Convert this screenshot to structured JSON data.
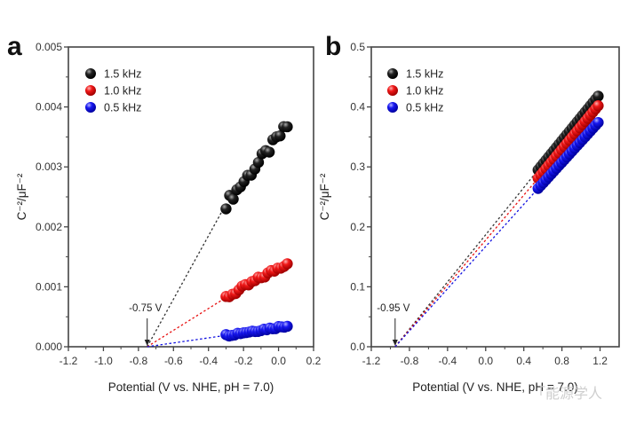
{
  "chart_data": [
    {
      "type": "scatter",
      "panel": "a",
      "title": "",
      "xlabel": "Potential (V vs. NHE, pH = 7.0)",
      "ylabel": "C⁻²/μF⁻²",
      "xlim": [
        -1.2,
        0.2
      ],
      "ylim": [
        0.0,
        0.005
      ],
      "xticks": [
        "-1.2",
        "-1.0",
        "-0.8",
        "-0.6",
        "-0.4",
        "-0.2",
        "0.0",
        "0.2"
      ],
      "xtick_values": [
        -1.2,
        -1.0,
        -0.8,
        -0.6,
        -0.4,
        -0.2,
        0.0,
        0.2
      ],
      "yticks": [
        "0.000",
        "0.001",
        "0.002",
        "0.003",
        "0.004",
        "0.005"
      ],
      "ytick_values": [
        0.0,
        0.001,
        0.002,
        0.003,
        0.004,
        0.005
      ],
      "legend_position": "top-left",
      "annotation": {
        "text": "-0.75 V",
        "x": -0.75
      },
      "grid": false,
      "series": [
        {
          "name": "1.5 kHz",
          "color": "#111111",
          "x_range": [
            -0.3,
            0.05
          ],
          "y_range": [
            0.00238,
            0.00368
          ],
          "npoints": 18,
          "jitter": 8e-05,
          "fit_intercept_x": -0.75
        },
        {
          "name": "1.0 kHz",
          "color": "#e81010",
          "x_range": [
            -0.3,
            0.05
          ],
          "y_range": [
            0.00082,
            0.0014
          ],
          "npoints": 20,
          "jitter": 4e-05,
          "fit_intercept_x": -0.75
        },
        {
          "name": "0.5 kHz",
          "color": "#1010e0",
          "x_range": [
            -0.3,
            0.05
          ],
          "y_range": [
            0.00019,
            0.00035
          ],
          "npoints": 22,
          "jitter": 2e-05,
          "fit_intercept_x": -0.75
        }
      ]
    },
    {
      "type": "scatter",
      "panel": "b",
      "title": "",
      "xlabel": "Potential (V vs. NHE, pH = 7.0)",
      "ylabel": "C⁻²/μF⁻²",
      "xlim": [
        -1.2,
        1.4
      ],
      "ylim": [
        0.0,
        0.5
      ],
      "xticks": [
        "-1.2",
        "-0.8",
        "-0.4",
        "0.0",
        "0.4",
        "0.8",
        "1.2"
      ],
      "xtick_values": [
        -1.2,
        -0.8,
        -0.4,
        0.0,
        0.4,
        0.8,
        1.2
      ],
      "yticks": [
        "0.0",
        "0.1",
        "0.2",
        "0.3",
        "0.4",
        "0.5"
      ],
      "ytick_values": [
        0.0,
        0.1,
        0.2,
        0.3,
        0.4,
        0.5
      ],
      "legend_position": "top-left",
      "annotation": {
        "text": "-0.95 V",
        "x": -0.95
      },
      "grid": false,
      "series": [
        {
          "name": "1.5 kHz",
          "color": "#111111",
          "x_range": [
            0.55,
            1.18
          ],
          "y_range": [
            0.295,
            0.418
          ],
          "npoints": 24,
          "jitter": 0.0,
          "fit_intercept_x": -0.95
        },
        {
          "name": "1.0 kHz",
          "color": "#e81010",
          "x_range": [
            0.55,
            1.18
          ],
          "y_range": [
            0.281,
            0.402
          ],
          "npoints": 24,
          "jitter": 0.0,
          "fit_intercept_x": -0.95
        },
        {
          "name": "0.5 kHz",
          "color": "#1010e0",
          "x_range": [
            0.55,
            1.18
          ],
          "y_range": [
            0.264,
            0.374
          ],
          "npoints": 24,
          "jitter": 0.0,
          "fit_intercept_x": -0.95
        }
      ]
    }
  ],
  "watermark": "「能源学人"
}
